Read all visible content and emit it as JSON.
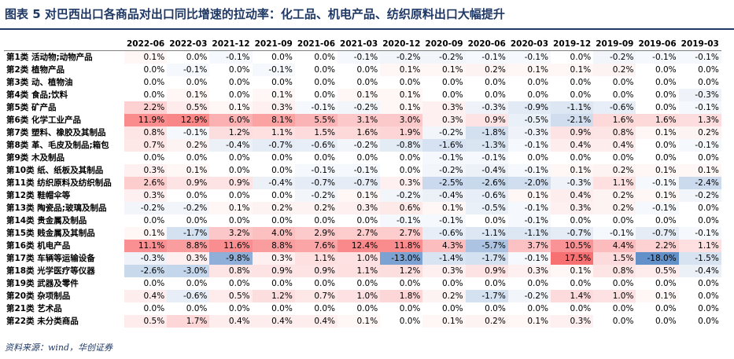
{
  "title": "图表 5   对巴西出口各商品对出口同比增速的拉动率：化工品、机电产品、纺织原料出口大幅提升",
  "source": "资料来源：wind，华创证券",
  "columns": [
    "2022-06",
    "2022-03",
    "2021-12",
    "2021-09",
    "2021-06",
    "2021-03",
    "2020-12",
    "2020-09",
    "2020-06",
    "2020-03",
    "2019-12",
    "2019-09",
    "2019-06",
    "2019-03"
  ],
  "rows": [
    {
      "label": "第1类 活动物;动物产品",
      "values": [
        0.1,
        0.0,
        -0.1,
        0.0,
        0.0,
        -0.1,
        -0.2,
        -0.2,
        -0.1,
        -0.1,
        0.0,
        -0.2,
        -0.1,
        -0.1
      ]
    },
    {
      "label": "第2类 植物产品",
      "values": [
        0.0,
        -0.1,
        0.0,
        -0.1,
        0.0,
        0.0,
        0.1,
        0.1,
        0.2,
        0.1,
        0.1,
        0.2,
        0.0,
        0.0
      ]
    },
    {
      "label": "第3类 动、植物油",
      "values": [
        0.0,
        0.0,
        0.0,
        0.0,
        0.0,
        0.0,
        0.0,
        0.0,
        0.0,
        0.0,
        0.0,
        0.0,
        0.0,
        0.0
      ]
    },
    {
      "label": "第4类 食品;饮料",
      "values": [
        0.0,
        0.1,
        0.0,
        0.1,
        0.0,
        0.1,
        0.1,
        0.0,
        0.0,
        0.0,
        0.0,
        0.0,
        0.0,
        -0.3
      ]
    },
    {
      "label": "第5类 矿产品",
      "values": [
        2.2,
        0.5,
        0.1,
        0.3,
        -0.1,
        -0.2,
        0.1,
        0.3,
        -0.3,
        -0.9,
        -1.1,
        -0.6,
        0.0,
        -0.1
      ]
    },
    {
      "label": "第6类 化学工业产品",
      "values": [
        11.9,
        12.9,
        6.0,
        8.1,
        5.5,
        3.1,
        3.0,
        0.3,
        0.9,
        -0.5,
        -2.1,
        1.6,
        1.6,
        1.3
      ]
    },
    {
      "label": "第7类 塑料、橡胶及其制品",
      "values": [
        0.8,
        -0.1,
        1.2,
        1.1,
        1.5,
        1.6,
        1.9,
        -0.2,
        -1.8,
        -0.3,
        0.9,
        0.8,
        0.1,
        0.2
      ]
    },
    {
      "label": "第8类 革、毛皮及制品;箱包",
      "values": [
        0.7,
        0.2,
        -0.4,
        -0.7,
        -0.6,
        -0.2,
        -0.8,
        -1.6,
        -1.3,
        -0.1,
        0.4,
        0.4,
        0.0,
        -0.1
      ]
    },
    {
      "label": "第9类 木及制品",
      "values": [
        0.0,
        0.0,
        0.0,
        0.0,
        0.0,
        0.0,
        0.0,
        -0.1,
        -0.1,
        0.0,
        0.0,
        0.0,
        0.0,
        0.0
      ]
    },
    {
      "label": "第10类 纸、纸板及其制品",
      "values": [
        0.3,
        0.1,
        0.0,
        0.0,
        -0.1,
        -0.1,
        0.0,
        -0.2,
        -0.4,
        -0.1,
        0.1,
        0.2,
        0.1,
        0.1
      ]
    },
    {
      "label": "第11类 纺织原料及纺织制品",
      "values": [
        2.6,
        0.9,
        0.9,
        -0.4,
        -0.7,
        -0.7,
        0.3,
        -2.5,
        -2.6,
        -2.0,
        -0.3,
        1.1,
        -0.1,
        -2.4
      ]
    },
    {
      "label": "第12类 鞋帽伞等",
      "values": [
        0.3,
        0.0,
        0.0,
        0.0,
        -0.2,
        0.1,
        -0.2,
        -0.4,
        -0.6,
        0.1,
        0.4,
        0.2,
        0.1,
        -0.2
      ]
    },
    {
      "label": "第13类 陶瓷品;玻璃及制品",
      "values": [
        -0.2,
        -0.2,
        0.1,
        0.2,
        0.2,
        0.3,
        0.6,
        0.1,
        -0.5,
        -0.1,
        0.3,
        0.2,
        -0.1,
        0.0
      ]
    },
    {
      "label": "第14类 贵金属及制品",
      "values": [
        0.0,
        0.0,
        0.0,
        0.0,
        0.0,
        0.0,
        -0.1,
        -0.1,
        0.0,
        -0.1,
        0.0,
        0.0,
        0.0,
        0.0
      ]
    },
    {
      "label": "第15类 贱金属及其制品",
      "values": [
        0.1,
        -1.7,
        3.2,
        4.0,
        2.9,
        2.7,
        2.7,
        -0.6,
        -1.1,
        -1.1,
        -0.7,
        -0.1,
        -0.7,
        -0.1
      ]
    },
    {
      "label": "第16类 机电产品",
      "values": [
        11.1,
        8.8,
        11.6,
        8.8,
        7.6,
        12.4,
        11.8,
        4.3,
        -5.7,
        3.7,
        10.5,
        4.4,
        2.2,
        1.1
      ]
    },
    {
      "label": "第17类 车辆等运输设备",
      "values": [
        -0.3,
        0.3,
        -9.8,
        0.3,
        1.1,
        1.0,
        -13.0,
        -1.4,
        -1.7,
        -0.1,
        17.5,
        1.5,
        -18.0,
        -1.5
      ]
    },
    {
      "label": "第18类 光学医疗等仪器",
      "values": [
        -2.6,
        -3.0,
        0.8,
        0.9,
        0.9,
        1.1,
        1.2,
        0.3,
        0.9,
        0.3,
        0.1,
        0.8,
        0.5,
        -0.4
      ]
    },
    {
      "label": "第19类 武器及零件",
      "values": [
        0.0,
        0.0,
        0.0,
        0.0,
        0.0,
        0.0,
        0.0,
        0.0,
        0.0,
        0.0,
        0.0,
        0.0,
        0.0,
        0.0
      ]
    },
    {
      "label": "第20类 杂项制品",
      "values": [
        0.4,
        -0.6,
        0.5,
        1.2,
        0.7,
        1.0,
        1.8,
        0.2,
        -1.7,
        -0.2,
        1.4,
        1.0,
        0.1,
        0.0
      ]
    },
    {
      "label": "第21类 艺术品",
      "values": [
        0.0,
        0.0,
        0.0,
        0.0,
        0.0,
        0.0,
        0.0,
        0.0,
        0.0,
        0.0,
        0.0,
        0.0,
        0.0,
        0.0
      ]
    },
    {
      "label": "第22类 未分类商品",
      "values": [
        0.5,
        1.7,
        0.4,
        0.4,
        0.4,
        0.1,
        0.0,
        0.1,
        0.2,
        0.1,
        0.3,
        0.0,
        0.0,
        0.0
      ]
    }
  ],
  "colors": {
    "positive": "#f8696b",
    "negative": "#5a8ac6",
    "title": "#1f3864"
  }
}
